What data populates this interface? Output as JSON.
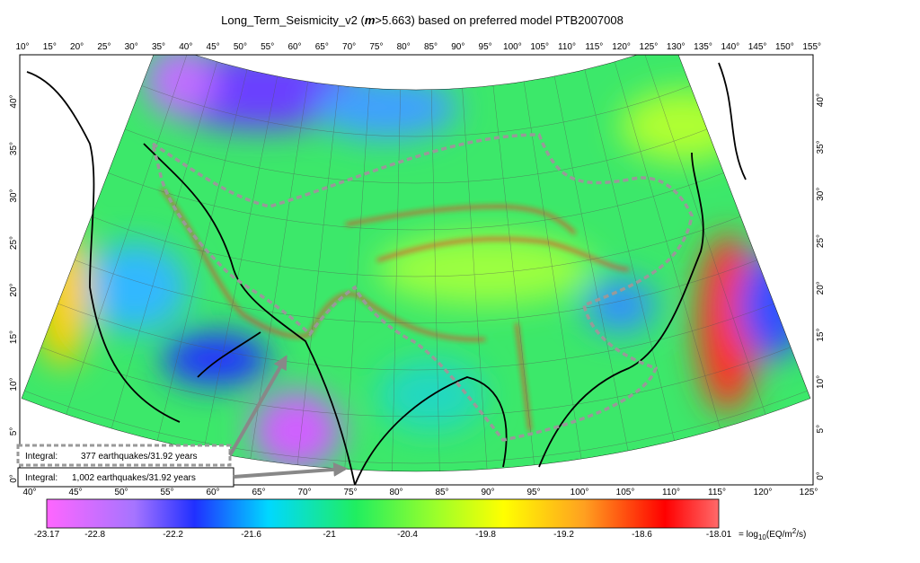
{
  "title": {
    "prefix": "Long_Term_Seismicity_v2 (",
    "emphasis": "m",
    "suffix": ">5.663) based on preferred model PTB2007008"
  },
  "map": {
    "top_longitudes": [
      "10°",
      "15°",
      "20°",
      "25°",
      "30°",
      "35°",
      "40°",
      "45°",
      "50°",
      "55°",
      "60°",
      "65°",
      "70°",
      "75°",
      "80°",
      "85°",
      "90°",
      "95°",
      "100°",
      "105°",
      "110°",
      "115°",
      "120°",
      "125°",
      "130°",
      "135°",
      "140°",
      "145°",
      "150°",
      "155°"
    ],
    "bottom_longitudes": [
      "40°",
      "45°",
      "50°",
      "55°",
      "60°",
      "65°",
      "70°",
      "75°",
      "80°",
      "85°",
      "90°",
      "95°",
      "100°",
      "105°",
      "110°",
      "115°",
      "120°",
      "125°"
    ],
    "left_latitudes": [
      "0°",
      "5°",
      "10°",
      "15°",
      "20°",
      "25°",
      "30°",
      "35°",
      "40°"
    ],
    "right_latitudes": [
      "0°",
      "5°",
      "10°",
      "15°",
      "20°",
      "25°",
      "30°",
      "35°",
      "40°"
    ]
  },
  "annotations": [
    {
      "label": "Integral:",
      "text": "377 earthquakes/31.92 years"
    },
    {
      "label": "Integral:",
      "text": "1,002 earthquakes/31.92 years"
    }
  ],
  "colorbar": {
    "lim": [
      -23.17,
      -18.01
    ],
    "ticks": [
      -23.17,
      -22.8,
      -22.2,
      -21.6,
      -21,
      -20.4,
      -19.8,
      -19.2,
      -18.6,
      -18.01
    ],
    "unit": {
      "prefix": "= log",
      "sub": "10",
      "middle": "(EQ/m",
      "sup": "2",
      "suffix": "/s)"
    }
  }
}
